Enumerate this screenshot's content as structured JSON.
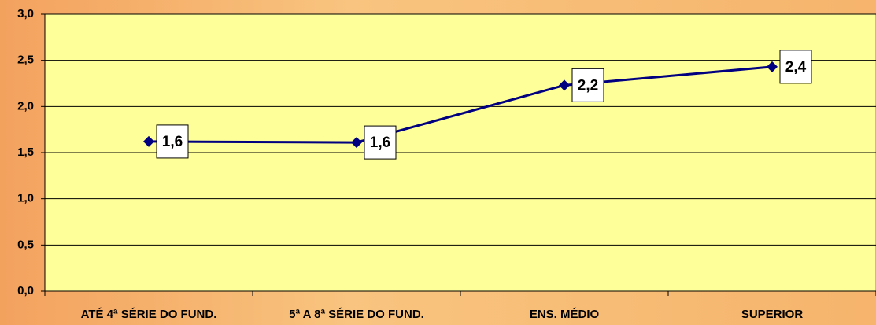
{
  "chart_data": {
    "type": "line",
    "categories": [
      "ATÉ 4ª SÉRIE DO FUND.",
      "5ª A 8ª SÉRIE DO FUND.",
      "ENS. MÉDIO",
      "SUPERIOR"
    ],
    "series": [
      {
        "color": "#000080",
        "values": [
          1.62,
          1.61,
          2.23,
          2.43
        ],
        "value_labels": [
          "1,6",
          "1,6",
          "2,2",
          "2,4"
        ]
      }
    ],
    "ylim": [
      0,
      3
    ],
    "yticks": [
      {
        "value": 0,
        "label": "0,0"
      },
      {
        "value": 0.5,
        "label": "0,5"
      },
      {
        "value": 1,
        "label": "1,0"
      },
      {
        "value": 1.5,
        "label": "1,5"
      },
      {
        "value": 2,
        "label": "2,0"
      },
      {
        "value": 2.5,
        "label": "2,5"
      },
      {
        "value": 3,
        "label": "3,0"
      }
    ],
    "grid": true,
    "plot_background": "#ffff99"
  }
}
